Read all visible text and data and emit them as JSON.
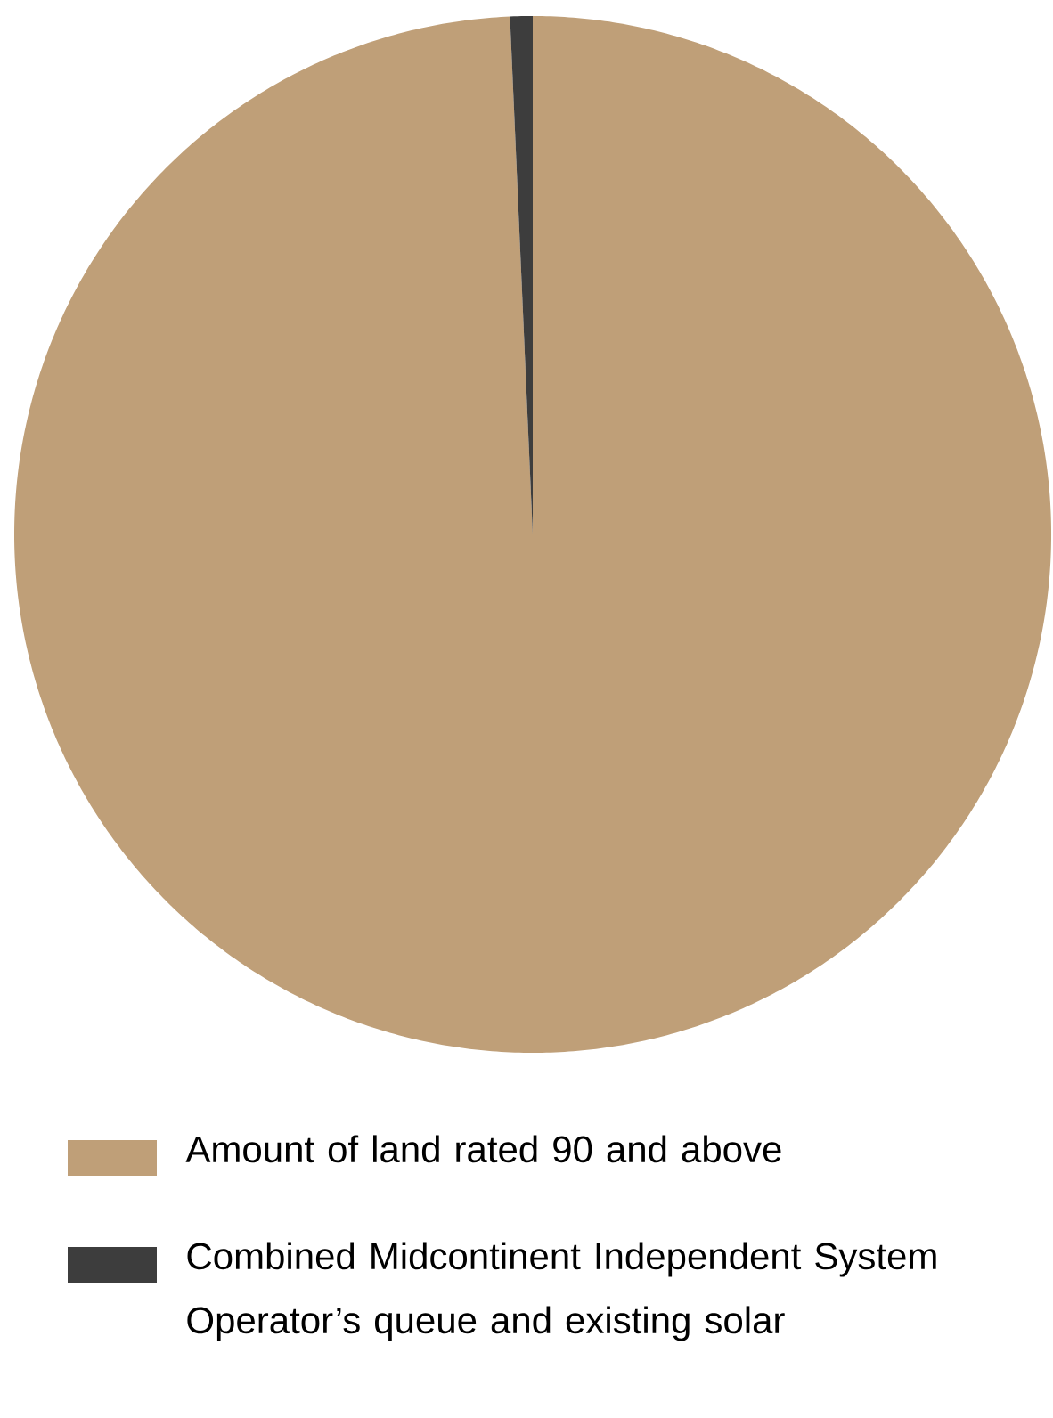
{
  "chart_data": {
    "type": "pie",
    "categories": [
      "Amount of land rated 90 and above",
      "Combined Midcontinent Independent System Operator’s queue and existing solar"
    ],
    "values": [
      99.3,
      0.7
    ],
    "colors": [
      "#bf9f78",
      "#3d3d3d"
    ],
    "legend": "bottom"
  }
}
